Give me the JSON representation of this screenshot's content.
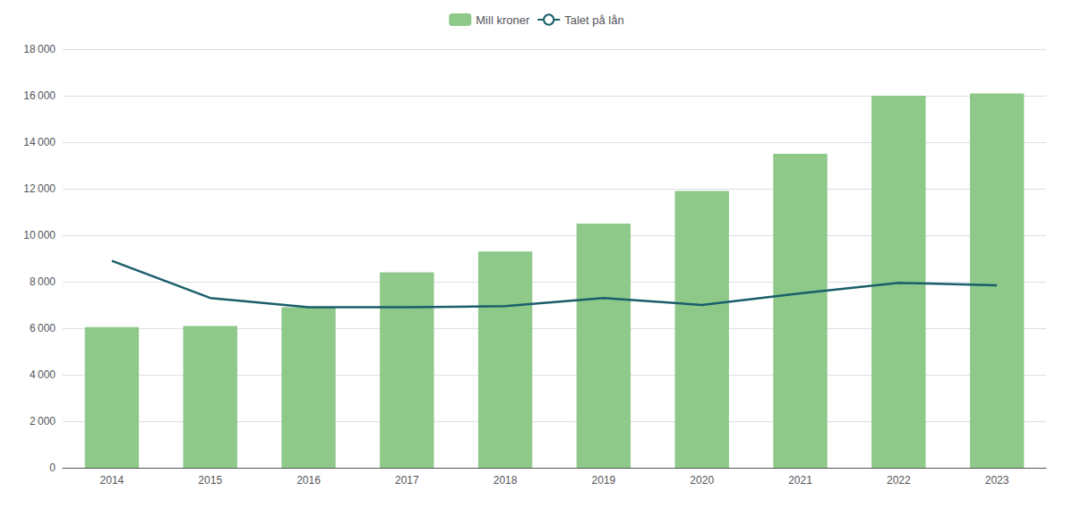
{
  "chart_data": {
    "type": "bar",
    "categories": [
      "2014",
      "2015",
      "2016",
      "2017",
      "2018",
      "2019",
      "2020",
      "2021",
      "2022",
      "2023"
    ],
    "series": [
      {
        "name": "Mill kroner",
        "type": "bar",
        "color": "#8ec98a",
        "values": [
          6050,
          6100,
          6900,
          8400,
          9300,
          10500,
          11900,
          13500,
          16000,
          16100
        ]
      },
      {
        "name": "Talet på lån",
        "type": "line",
        "color": "#1a5e6a",
        "values": [
          8900,
          7300,
          6900,
          6900,
          6950,
          7300,
          7000,
          7500,
          7950,
          7850
        ]
      }
    ],
    "ylim": [
      0,
      18000
    ],
    "yticks": [
      0,
      {
        "value": 2000,
        "label": "2 000"
      },
      {
        "value": 4000,
        "label": "4 000"
      },
      {
        "value": 6000,
        "label": "6 000"
      },
      {
        "value": 8000,
        "label": "8 000"
      },
      {
        "value": 10000,
        "label": "10 000"
      },
      {
        "value": 12000,
        "label": "12 000"
      },
      {
        "value": 14000,
        "label": "14 000"
      },
      {
        "value": 16000,
        "label": "16 000"
      },
      {
        "value": 18000,
        "label": "18 000"
      }
    ],
    "grid": true,
    "legend": "top"
  }
}
